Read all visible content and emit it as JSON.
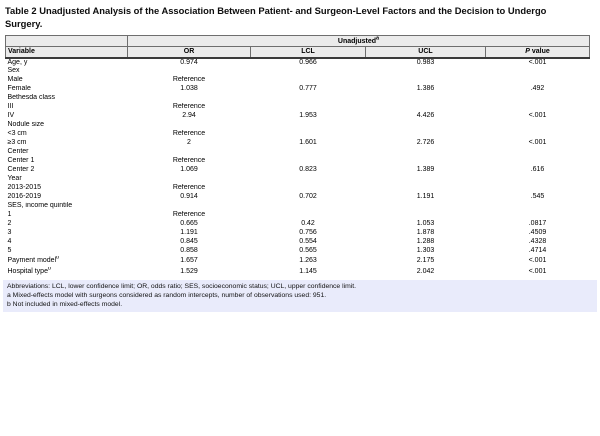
{
  "title": "Table 2 Unadjusted Analysis of the Association Between Patient- and Surgeon-Level Factors and the Decision to Undergo Surgery.",
  "table": {
    "group_header": {
      "label": "Unadjusted",
      "sup": "a"
    },
    "columns": {
      "variable": "Variable",
      "or": "OR",
      "lcl": "LCL",
      "ucl": "UCL",
      "p_italic": "P",
      "p_rest": " value"
    },
    "rows": [
      {
        "label": "Age, y",
        "sup": "",
        "or": "0.974",
        "lcl": "0.966",
        "ucl": "0.983",
        "p": "<.001"
      },
      {
        "label": "Sex",
        "sup": "",
        "or": "",
        "lcl": "",
        "ucl": "",
        "p": ""
      },
      {
        "label": "Male",
        "sup": "",
        "or": "Reference",
        "lcl": "",
        "ucl": "",
        "p": ""
      },
      {
        "label": "Female",
        "sup": "",
        "or": "1.038",
        "lcl": "0.777",
        "ucl": "1.386",
        "p": ".492"
      },
      {
        "label": "Bethesda class",
        "sup": "",
        "or": "",
        "lcl": "",
        "ucl": "",
        "p": ""
      },
      {
        "label": "III",
        "sup": "",
        "or": "Reference",
        "lcl": "",
        "ucl": "",
        "p": ""
      },
      {
        "label": "IV",
        "sup": "",
        "or": "2.94",
        "lcl": "1.953",
        "ucl": "4.426",
        "p": "<.001"
      },
      {
        "label": "Nodule size",
        "sup": "",
        "or": "",
        "lcl": "",
        "ucl": "",
        "p": ""
      },
      {
        "label": "<3 cm",
        "sup": "",
        "or": "Reference",
        "lcl": "",
        "ucl": "",
        "p": ""
      },
      {
        "label": "≥3 cm",
        "sup": "",
        "or": "2",
        "lcl": "1.601",
        "ucl": "2.726",
        "p": "<.001"
      },
      {
        "label": "Center",
        "sup": "",
        "or": "",
        "lcl": "",
        "ucl": "",
        "p": ""
      },
      {
        "label": "Center 1",
        "sup": "",
        "or": "Reference",
        "lcl": "",
        "ucl": "",
        "p": ""
      },
      {
        "label": "Center 2",
        "sup": "",
        "or": "1.069",
        "lcl": "0.823",
        "ucl": "1.389",
        "p": ".616"
      },
      {
        "label": "Year",
        "sup": "",
        "or": "",
        "lcl": "",
        "ucl": "",
        "p": ""
      },
      {
        "label": "2013-2015",
        "sup": "",
        "or": "Reference",
        "lcl": "",
        "ucl": "",
        "p": ""
      },
      {
        "label": "2016-2019",
        "sup": "",
        "or": "0.914",
        "lcl": "0.702",
        "ucl": "1.191",
        "p": ".545"
      },
      {
        "label": "SES, income quintile",
        "sup": "",
        "or": "",
        "lcl": "",
        "ucl": "",
        "p": ""
      },
      {
        "label": "1",
        "sup": "",
        "or": "Reference",
        "lcl": "",
        "ucl": "",
        "p": ""
      },
      {
        "label": "2",
        "sup": "",
        "or": "0.665",
        "lcl": "0.42",
        "ucl": "1.053",
        "p": ".0817"
      },
      {
        "label": "3",
        "sup": "",
        "or": "1.191",
        "lcl": "0.756",
        "ucl": "1.878",
        "p": ".4509"
      },
      {
        "label": "4",
        "sup": "",
        "or": "0.845",
        "lcl": "0.554",
        "ucl": "1.288",
        "p": ".4328"
      },
      {
        "label": "5",
        "sup": "",
        "or": "0.858",
        "lcl": "0.565",
        "ucl": "1.303",
        "p": ".4714"
      },
      {
        "label": "Payment model",
        "sup": "b",
        "or": "1.657",
        "lcl": "1.263",
        "ucl": "2.175",
        "p": "<.001"
      },
      {
        "label": "Hospital type",
        "sup": "b",
        "or": "1.529",
        "lcl": "1.145",
        "ucl": "2.042",
        "p": "<.001"
      }
    ]
  },
  "footnotes": {
    "abbreviations": "Abbreviations: LCL, lower confidence limit; OR, odds ratio; SES, socioeconomic status; UCL, upper confidence limit.",
    "a": "a Mixed-effects model with surgeons considered as random intercepts, number of observations used: 951.",
    "b": "b Not included in mixed-effects model."
  },
  "colors": {
    "header_background": "#ebebeb",
    "footnote_background": "#e9ebfb",
    "border": "#6e6e6e",
    "text": "#000000"
  }
}
